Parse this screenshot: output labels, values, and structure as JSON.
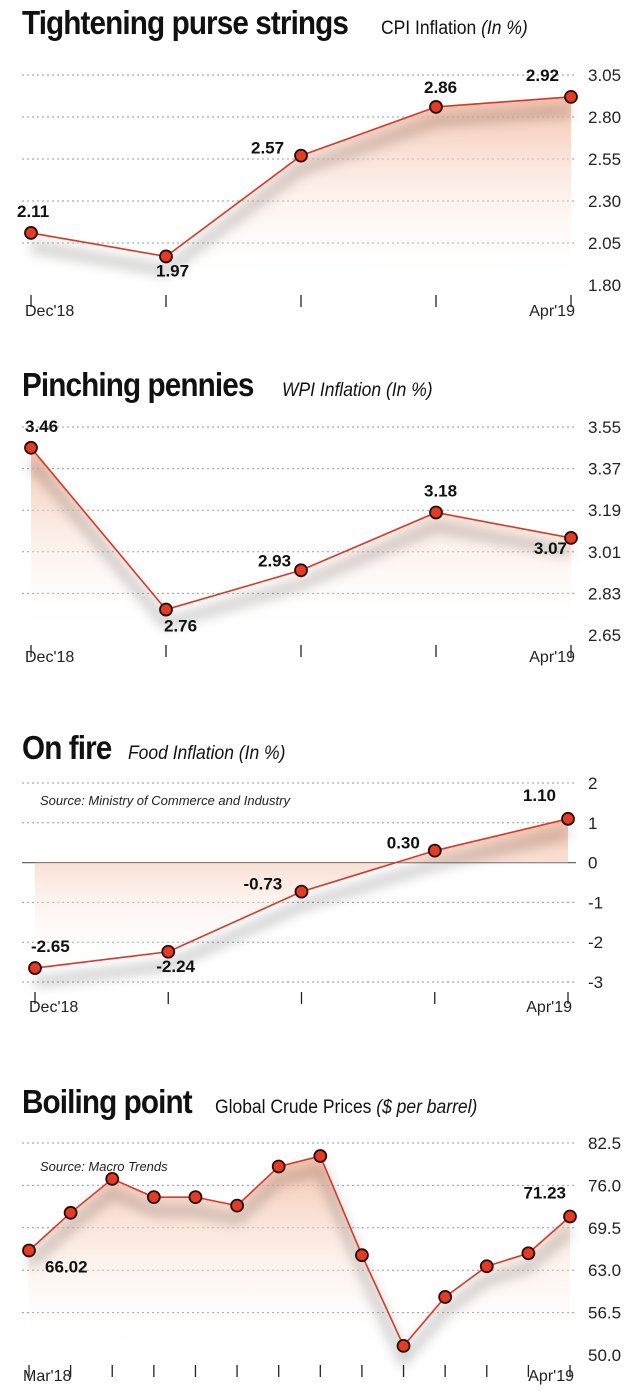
{
  "chart_data": [
    {
      "type": "line",
      "title": "Tightening purse strings",
      "subtitle": "CPI Inflation",
      "unit": "(In %)",
      "x_labels": [
        "Dec'18",
        "",
        "",
        "",
        "Apr'19"
      ],
      "values": [
        2.11,
        1.97,
        2.57,
        2.86,
        2.92
      ],
      "data_labels": [
        "2.11",
        "1.97",
        "2.57",
        "2.86",
        "2.92"
      ],
      "yticks": [
        "3.05",
        "2.80",
        "2.55",
        "2.30",
        "2.05",
        "1.80"
      ],
      "ylim": [
        1.8,
        3.05
      ],
      "grid": true
    },
    {
      "type": "line",
      "title": "Pinching pennies",
      "subtitle": "WPI Inflation",
      "unit": "(In %)",
      "x_labels": [
        "Dec'18",
        "",
        "",
        "",
        "Apr'19"
      ],
      "values": [
        3.46,
        2.76,
        2.93,
        3.18,
        3.07
      ],
      "data_labels": [
        "3.46",
        "2.76",
        "2.93",
        "3.18",
        "3.07"
      ],
      "yticks": [
        "3.55",
        "3.37",
        "3.19",
        "3.01",
        "2.83",
        "2.65"
      ],
      "ylim": [
        2.65,
        3.55
      ],
      "grid": true
    },
    {
      "type": "line",
      "title": "On fire",
      "subtitle": "Food Inflation",
      "unit": "(In %)",
      "source": "Source: Ministry of Commerce and Industry",
      "x_labels": [
        "Dec'18",
        "",
        "",
        "",
        "Apr'19"
      ],
      "values": [
        -2.65,
        -2.24,
        -0.73,
        0.3,
        1.1
      ],
      "data_labels": [
        "-2.65",
        "-2.24",
        "-0.73",
        "0.30",
        "1.10"
      ],
      "yticks": [
        "2",
        "1",
        "0",
        "-1",
        "-2",
        "-3"
      ],
      "ylim": [
        -3,
        2
      ],
      "grid": true
    },
    {
      "type": "line",
      "title": "Boiling point",
      "subtitle": "Global Crude Prices",
      "unit": "($ per barrel)",
      "source": "Source: Macro Trends",
      "x_labels": [
        "Mar'18",
        "",
        "",
        "",
        "",
        "",
        "",
        "",
        "",
        "",
        "",
        "",
        "",
        "Apr'19"
      ],
      "values": [
        66.02,
        71.8,
        77.0,
        74.2,
        74.2,
        72.9,
        78.9,
        80.5,
        65.3,
        51.4,
        58.9,
        63.6,
        65.6,
        71.23
      ],
      "data_labels": [
        "66.02",
        "",
        "",
        "",
        "",
        "",
        "",
        "",
        "",
        "",
        "",
        "",
        "",
        "71.23"
      ],
      "yticks": [
        "82.5",
        "76.0",
        "69.5",
        "63.0",
        "56.5",
        "50.0"
      ],
      "ylim": [
        50.0,
        82.5
      ],
      "grid": true
    }
  ]
}
